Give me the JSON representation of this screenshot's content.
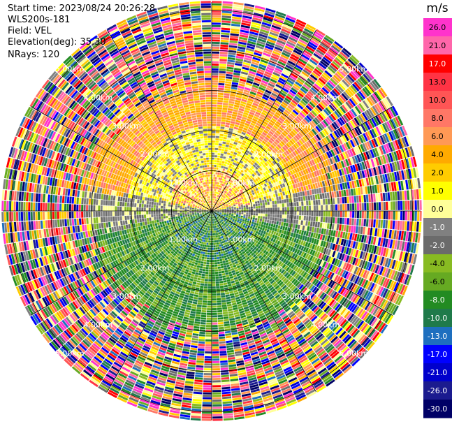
{
  "info": {
    "start_time_label": "Start time:",
    "start_time": "2023/08/24 20:26:28",
    "instrument": "WLS200s-181",
    "field_label": "Field:",
    "field": "VEL",
    "elevation_label": "Elevation(deg):",
    "elevation": "35.30",
    "nrays_label": "NRays:",
    "nrays": "120"
  },
  "colorbar": {
    "unit": "m/s",
    "ticks": [
      "26.0",
      "21.0",
      "17.0",
      "13.0",
      "10.0",
      "8.0",
      "6.0",
      "4.0",
      "2.0",
      "1.0",
      "0.0",
      "-1.0",
      "-2.0",
      "-4.0",
      "-6.0",
      "-8.0",
      "-10.0",
      "-13.0",
      "-17.0",
      "-21.0",
      "-26.0",
      "-30.0"
    ],
    "colors": [
      "#ff33cc",
      "#ff66aa",
      "#ff0000",
      "#ff3344",
      "#ff5555",
      "#ff7766",
      "#ff9955",
      "#ffaa00",
      "#ffcc00",
      "#ffff00",
      "#ffff99",
      "#808080",
      "#6b6b6b",
      "#88bb22",
      "#66aa22",
      "#228b22",
      "#1f7a4a",
      "#1e6fbf",
      "#0000ff",
      "#0000cc",
      "#1b1b8f",
      "#000066"
    ]
  },
  "range_rings": {
    "labels": [
      "1.00km",
      "2.00km",
      "3.00km",
      "4.00km",
      "5.00km"
    ]
  },
  "chart_data": {
    "type": "heatmap",
    "projection": "polar PPI",
    "field": "VEL",
    "units": "m/s",
    "nrays": 120,
    "range_rings_km": [
      1,
      2,
      3,
      4,
      5
    ],
    "max_range_km": 5.2,
    "color_scale": {
      "min": -30.0,
      "max": 26.0,
      "ticks": [
        26.0,
        21.0,
        17.0,
        13.0,
        10.0,
        8.0,
        6.0,
        4.0,
        2.0,
        1.0,
        0.0,
        -1.0,
        -2.0,
        -4.0,
        -6.0,
        -8.0,
        -10.0,
        -13.0,
        -17.0,
        -21.0,
        -26.0,
        -30.0
      ]
    },
    "features": {
      "north_sector_velocity": "positive 2 to 8 m/s (yellow/orange)",
      "south_sector_velocity": "negative -4 to -8 m/s (green)",
      "beyond_range_km": 3.0,
      "beyond_range_signal": "noise (all colors)"
    }
  }
}
